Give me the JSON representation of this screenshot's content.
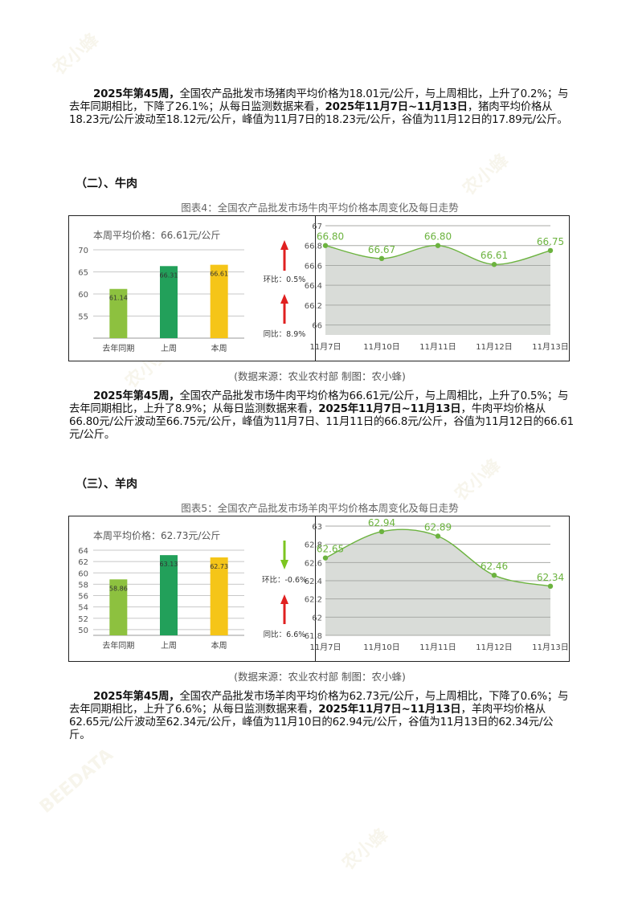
{
  "watermark": {
    "brand_cn": "农小蜂",
    "brand_en": "BEEDATA"
  },
  "pork_paragraph": {
    "b1": "2025年第45周，",
    "t1": "全国农产品批发市场猪肉平均价格为18.01元/公斤，与上周相比，上升了0.2%；与去年同期相比，下降了26.1%；从每日监测数据来看，",
    "b2": "2025年11月7日~11月13日",
    "t2": "，猪肉平均价格从18.23元/公斤波动至18.12元/公斤，峰值为11月7日的18.23元/公斤，谷值为11月12日的17.89元/公斤。"
  },
  "beef": {
    "section_title": "（二）、牛肉",
    "figure_caption": "图表4：全国农产品批发市场牛肉平均价格本周变化及每日走势",
    "weekly_label": "本周平均价格：66.61元/公斤",
    "mom_label": "环比：0.5%",
    "yoy_label": "同比：8.9%",
    "source": "(数据来源：农业农村部    制图：农小蜂)",
    "paragraph": {
      "b1": "2025年第45周，",
      "t1": "全国农产品批发市场牛肉平均价格为66.61元/公斤，与上周相比，上升了0.5%；与去年同期相比，上升了8.9%；从每日监测数据来看，",
      "b2": "2025年11月7日~11月13日",
      "t2": "，牛肉平均价格从66.80元/公斤波动至66.75元/公斤，峰值为11月7日、11月11日的66.8元/公斤，谷值为11月12日的66.61元/公斤。"
    }
  },
  "mutton": {
    "section_title": "（三）、羊肉",
    "figure_caption": "图表5：全国农产品批发市场羊肉平均价格本周变化及每日走势",
    "weekly_label": "本周平均价格：62.73元/公斤",
    "mom_label": "环比：-0.6%",
    "yoy_label": "同比：6.6%",
    "source": "(数据来源：农业农村部    制图：农小蜂)",
    "paragraph": {
      "b1": "2025年第45周，",
      "t1": "全国农产品批发市场羊肉平均价格为62.73元/公斤，与上周相比，下降了0.6%；与去年同期相比，上升了6.6%；从每日监测数据来看，",
      "b2": "2025年11月7日~11月13日",
      "t2": "，羊肉平均价格从62.65元/公斤波动至62.34元/公斤，峰值为11月10日的62.94元/公斤，谷值为11月13日的62.34元/公斤。"
    }
  },
  "colors": {
    "bar_last_year": "#8dc13f",
    "bar_last_week": "#22a05a",
    "bar_this_week": "#f5c518",
    "arrow_up": "#e02020",
    "arrow_down": "#7cc520",
    "line": "#6cb33f",
    "area": "#d9dcd8"
  },
  "chart_data": [
    {
      "id": "beef-weekly-bar",
      "type": "bar",
      "categories": [
        "去年同期",
        "上周",
        "本周"
      ],
      "values": [
        61.14,
        66.31,
        66.61
      ],
      "ylim": [
        50,
        70
      ],
      "yticks": [
        55,
        60,
        65,
        70
      ],
      "grid": true
    },
    {
      "id": "beef-daily-line",
      "type": "area",
      "x": [
        "11月7日",
        "11月10日",
        "11月11日",
        "11月12日",
        "11月13日"
      ],
      "values": [
        66.8,
        66.67,
        66.8,
        66.61,
        66.75
      ],
      "ylim": [
        65.9,
        67
      ],
      "yticks": [
        66,
        66.2,
        66.4,
        66.6,
        66.8,
        67
      ],
      "grid": true
    },
    {
      "id": "mutton-weekly-bar",
      "type": "bar",
      "categories": [
        "去年同期",
        "上周",
        "本周"
      ],
      "values": [
        58.86,
        63.13,
        62.73
      ],
      "ylim": [
        49,
        64
      ],
      "yticks": [
        50,
        52,
        54,
        56,
        58,
        60,
        62,
        64
      ],
      "grid": true
    },
    {
      "id": "mutton-daily-line",
      "type": "area",
      "x": [
        "11月7日",
        "11月10日",
        "11月11日",
        "11月12日",
        "11月13日"
      ],
      "values": [
        62.65,
        62.94,
        62.89,
        62.46,
        62.34
      ],
      "ylim": [
        61.8,
        63
      ],
      "yticks": [
        61.8,
        62,
        62.2,
        62.4,
        62.6,
        62.8,
        63
      ],
      "grid": true
    }
  ]
}
